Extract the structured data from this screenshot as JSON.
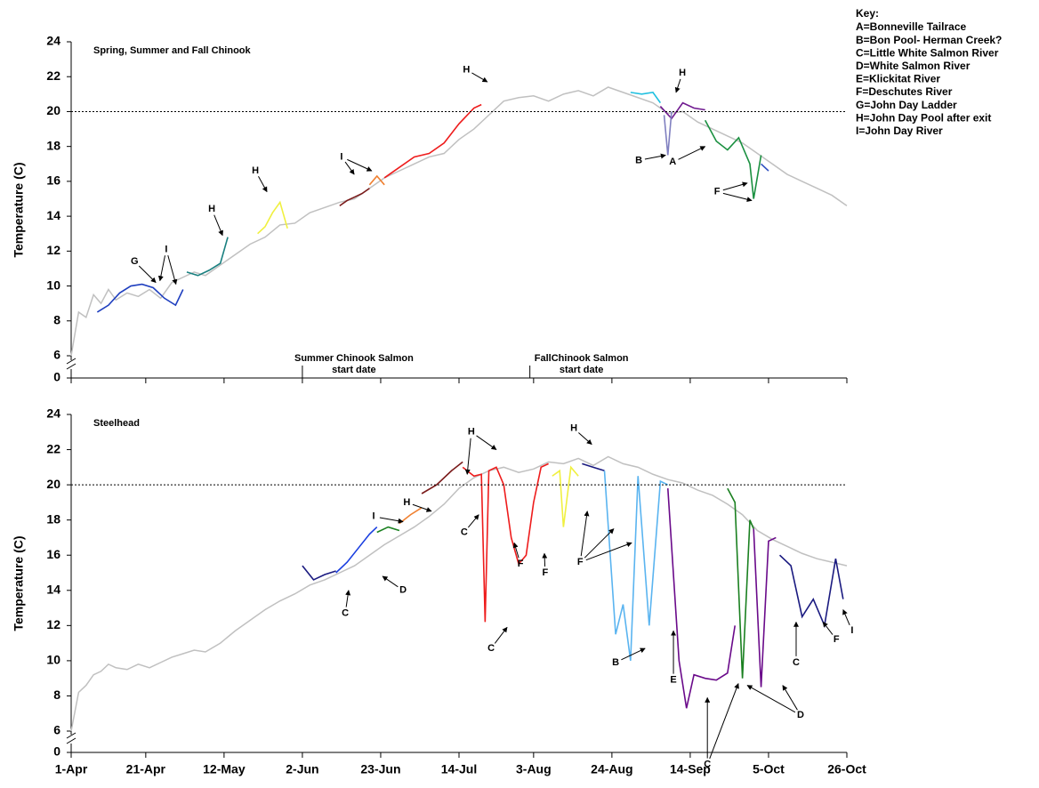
{
  "chart_data": [
    {
      "type": "line",
      "title": "Spring, Summer and Fall Chinook",
      "y_label": "Temperature (C)",
      "xlim": [
        0,
        208
      ],
      "xticks": [
        0,
        20,
        41,
        62,
        83,
        104,
        124,
        145,
        166,
        187,
        208
      ],
      "ylim": [
        6,
        24
      ],
      "yticks": [
        6,
        8,
        10,
        12,
        14,
        16,
        18,
        20,
        22,
        24
      ],
      "y_break_label": 0,
      "hline": 20,
      "markers": [
        {
          "x": 62,
          "label": [
            "Summer Chinook Salmon",
            "start date"
          ]
        },
        {
          "x": 123,
          "label": [
            "FallChinook Salmon",
            "start date"
          ]
        }
      ],
      "series": [
        {
          "color": "#c0c0c0",
          "x": [
            0,
            2,
            4,
            6,
            8,
            10,
            12,
            15,
            18,
            21,
            24,
            27,
            30,
            33,
            36,
            40,
            44,
            48,
            52,
            56,
            60,
            64,
            68,
            72,
            76,
            80,
            84,
            88,
            92,
            96,
            100,
            104,
            108,
            112,
            116,
            120,
            124,
            128,
            132,
            136,
            140,
            144,
            148,
            152,
            156,
            160,
            164,
            168,
            172,
            176,
            180,
            184,
            188,
            192,
            196,
            200,
            204,
            208
          ],
          "values": [
            6,
            8.5,
            8.2,
            9.5,
            9,
            9.8,
            9.2,
            9.6,
            9.4,
            9.8,
            9.3,
            10.2,
            10.5,
            10.8,
            10.6,
            11.2,
            11.8,
            12.4,
            12.8,
            13.5,
            13.6,
            14.2,
            14.5,
            14.8,
            15,
            15.6,
            16.2,
            16.6,
            17,
            17.4,
            17.6,
            18.4,
            19,
            19.8,
            20.6,
            20.8,
            20.9,
            20.6,
            21,
            21.2,
            20.9,
            21.4,
            21.1,
            20.8,
            20.5,
            19.9,
            20,
            19.4,
            19,
            18.6,
            18.2,
            17.6,
            17,
            16.4,
            16,
            15.6,
            15.2,
            14.6
          ]
        },
        {
          "color": "#1f3fbf",
          "x": [
            7,
            10,
            13,
            16,
            19,
            22,
            25,
            28,
            30
          ],
          "values": [
            8.5,
            8.9,
            9.6,
            10,
            10.1,
            9.9,
            9.3,
            8.9,
            9.8
          ]
        },
        {
          "color": "#1a8080",
          "x": [
            31,
            34,
            37,
            40,
            42
          ],
          "values": [
            10.8,
            10.6,
            10.9,
            11.3,
            12.8
          ]
        },
        {
          "color": "#f0f040",
          "x": [
            50,
            52,
            54,
            56,
            58
          ],
          "values": [
            13,
            13.4,
            14.2,
            14.8,
            13.3
          ]
        },
        {
          "color": "#7a1a1a",
          "x": [
            72,
            74,
            76,
            78,
            80
          ],
          "values": [
            14.6,
            14.9,
            15.1,
            15.3,
            15.6
          ]
        },
        {
          "color": "#f08030",
          "x": [
            80,
            82,
            84
          ],
          "values": [
            15.8,
            16.3,
            15.8
          ]
        },
        {
          "color": "#ee1c1c",
          "x": [
            84,
            88,
            92,
            96,
            100,
            104,
            108,
            110
          ],
          "values": [
            16.2,
            16.8,
            17.4,
            17.6,
            18.2,
            19.3,
            20.2,
            20.4
          ]
        },
        {
          "color": "#20c0e0",
          "x": [
            150,
            153,
            156,
            158
          ],
          "values": [
            21.1,
            21,
            21.1,
            20.5
          ]
        },
        {
          "color": "#701a90",
          "x": [
            158,
            161,
            164,
            167,
            170
          ],
          "values": [
            20.3,
            19.6,
            20.5,
            20.2,
            20.1
          ]
        },
        {
          "color": "#8080c0",
          "x": [
            159,
            160,
            161
          ],
          "values": [
            19.8,
            17.5,
            20
          ]
        },
        {
          "color": "#1a9040",
          "x": [
            170,
            173,
            176,
            179,
            182,
            183,
            185
          ],
          "values": [
            19.5,
            18.3,
            17.8,
            18.5,
            17,
            15,
            17.5
          ]
        },
        {
          "color": "#3050c0",
          "x": [
            185,
            187
          ],
          "values": [
            17,
            16.6
          ]
        }
      ],
      "annotations": [
        {
          "text": "H",
          "x": 106,
          "y": 22.4,
          "targets": [
            [
              111.6,
              21.7
            ]
          ]
        },
        {
          "text": "G",
          "x": 17,
          "y": 11.4,
          "targets": [
            [
              22.7,
              10.2
            ]
          ]
        },
        {
          "text": "I",
          "x": 25.5,
          "y": 12.1,
          "targets": [
            [
              23.8,
              10.3
            ],
            [
              28.1,
              10.1
            ]
          ]
        },
        {
          "text": "H",
          "x": 37.7,
          "y": 14.4,
          "targets": [
            [
              40.6,
              12.9
            ]
          ]
        },
        {
          "text": "H",
          "x": 49.4,
          "y": 16.6,
          "targets": [
            [
              52.5,
              15.4
            ]
          ]
        },
        {
          "text": "I",
          "x": 72.5,
          "y": 17.4,
          "targets": [
            [
              75.9,
              16.4
            ],
            [
              80.6,
              16.6
            ]
          ]
        },
        {
          "text": "H",
          "x": 163.9,
          "y": 22.2,
          "targets": [
            [
              162.2,
              21.1
            ]
          ]
        },
        {
          "text": "B",
          "x": 152.2,
          "y": 17.2,
          "targets": [
            [
              159.4,
              17.5
            ]
          ]
        },
        {
          "text": "A",
          "x": 161.3,
          "y": 17.1,
          "targets": [
            [
              170,
              18
            ]
          ]
        },
        {
          "text": "F",
          "x": 173.2,
          "y": 15.4,
          "targets": [
            [
              181.3,
              15.9
            ],
            [
              182.5,
              14.9
            ]
          ]
        }
      ]
    },
    {
      "type": "line",
      "title": "Steelhead",
      "y_label": "Temperature (C)",
      "xlim": [
        0,
        208
      ],
      "xticks": [
        {
          "value": 0,
          "label": "1-Apr"
        },
        {
          "value": 20,
          "label": "21-Apr"
        },
        {
          "value": 41,
          "label": "12-May"
        },
        {
          "value": 62,
          "label": "2-Jun"
        },
        {
          "value": 83,
          "label": "23-Jun"
        },
        {
          "value": 104,
          "label": "14-Jul"
        },
        {
          "value": 124,
          "label": "3-Aug"
        },
        {
          "value": 145,
          "label": "24-Aug"
        },
        {
          "value": 166,
          "label": "14-Sep"
        },
        {
          "value": 187,
          "label": "5-Oct"
        },
        {
          "value": 208,
          "label": "26-Oct"
        }
      ],
      "ylim": [
        6,
        24
      ],
      "yticks": [
        6,
        8,
        10,
        12,
        14,
        16,
        18,
        20,
        22,
        24
      ],
      "y_break_label": 0,
      "hline": 20,
      "series": [
        {
          "color": "#c0c0c0",
          "x": [
            0,
            2,
            4,
            6,
            8,
            10,
            12,
            15,
            18,
            21,
            24,
            27,
            30,
            33,
            36,
            40,
            44,
            48,
            52,
            56,
            60,
            64,
            68,
            72,
            76,
            80,
            84,
            88,
            92,
            96,
            100,
            104,
            108,
            112,
            116,
            120,
            124,
            128,
            132,
            136,
            140,
            144,
            148,
            152,
            156,
            160,
            164,
            168,
            172,
            176,
            180,
            184,
            188,
            192,
            196,
            200,
            204,
            208
          ],
          "values": [
            6,
            8.2,
            8.6,
            9.2,
            9.4,
            9.8,
            9.6,
            9.5,
            9.8,
            9.6,
            9.9,
            10.2,
            10.4,
            10.6,
            10.5,
            11,
            11.7,
            12.3,
            12.9,
            13.4,
            13.8,
            14.3,
            14.6,
            15,
            15.4,
            16,
            16.6,
            17.1,
            17.6,
            18.2,
            18.9,
            19.8,
            20.4,
            20.8,
            21,
            20.7,
            20.9,
            21.3,
            21.2,
            21.5,
            21.1,
            21.6,
            21.2,
            21,
            20.6,
            20.3,
            20.1,
            19.7,
            19.4,
            18.9,
            18.3,
            17.4,
            16.9,
            16.5,
            16.1,
            15.8,
            15.6,
            15.4
          ]
        },
        {
          "color": "#1a1a80",
          "x": [
            62,
            65,
            68,
            71
          ],
          "values": [
            15.4,
            14.6,
            14.9,
            15.1
          ]
        },
        {
          "color": "#1a3fe0",
          "x": [
            71,
            74,
            77,
            80,
            82
          ],
          "values": [
            15,
            15.6,
            16.4,
            17.2,
            17.6
          ]
        },
        {
          "color": "#1a8020",
          "x": [
            82,
            85,
            88
          ],
          "values": [
            17.3,
            17.6,
            17.4
          ]
        },
        {
          "color": "#f08030",
          "x": [
            88,
            91,
            94
          ],
          "values": [
            17.8,
            18.3,
            18.7
          ]
        },
        {
          "color": "#7a1a1a",
          "x": [
            94,
            98,
            102,
            105
          ],
          "values": [
            19.5,
            20,
            20.8,
            21.3
          ]
        },
        {
          "color": "#ee1c1c",
          "x": [
            105,
            108,
            110,
            111,
            112,
            114,
            116,
            118,
            120,
            122,
            124,
            126,
            128
          ],
          "values": [
            21,
            20.5,
            20.6,
            12.2,
            20.8,
            21,
            20,
            17,
            15.5,
            16,
            19,
            21,
            21.2
          ]
        },
        {
          "color": "#f0f040",
          "x": [
            129,
            131,
            132,
            134,
            136
          ],
          "values": [
            20.5,
            20.8,
            17.6,
            21,
            20.5
          ]
        },
        {
          "color": "#1a1a80",
          "x": [
            137,
            140,
            143
          ],
          "values": [
            21.2,
            21,
            20.8
          ]
        },
        {
          "color": "#5ab4f0",
          "x": [
            143,
            146,
            148,
            150,
            152,
            155,
            158,
            160
          ],
          "values": [
            20.8,
            11.5,
            13.2,
            10,
            20.5,
            12,
            20.2,
            20
          ]
        },
        {
          "color": "#6a0a8a",
          "x": [
            160,
            163,
            165,
            167,
            170,
            173,
            176,
            178
          ],
          "values": [
            19.8,
            10,
            7.3,
            9.2,
            9,
            8.9,
            9.3,
            12
          ]
        },
        {
          "color": "#1a8020",
          "x": [
            176,
            178,
            180,
            182,
            183
          ],
          "values": [
            19.8,
            19,
            9,
            18,
            17.5
          ]
        },
        {
          "color": "#6a0a8a",
          "x": [
            183,
            185,
            187,
            189
          ],
          "values": [
            17.5,
            8.5,
            16.8,
            17
          ]
        },
        {
          "color": "#1a1a80",
          "x": [
            190,
            193,
            196,
            199,
            202,
            205,
            207
          ],
          "values": [
            16,
            15.4,
            12.5,
            13.5,
            12,
            15.8,
            13.5
          ]
        }
      ],
      "annotations": [
        {
          "text": "H",
          "x": 107.3,
          "y": 23,
          "targets": [
            [
              114,
              22
            ],
            [
              106.2,
              20.6
            ]
          ]
        },
        {
          "text": "H",
          "x": 134.8,
          "y": 23.2,
          "targets": [
            [
              139.6,
              22.3
            ]
          ]
        },
        {
          "text": "I",
          "x": 81.1,
          "y": 18.2,
          "targets": [
            [
              89,
              17.9
            ]
          ]
        },
        {
          "text": "H",
          "x": 90,
          "y": 19,
          "targets": [
            [
              96.6,
              18.5
            ]
          ]
        },
        {
          "text": "C",
          "x": 105.4,
          "y": 17.3,
          "targets": [
            [
              109.3,
              18.3
            ]
          ]
        },
        {
          "text": "C",
          "x": 73.5,
          "y": 12.7,
          "targets": [
            [
              74.4,
              14
            ]
          ]
        },
        {
          "text": "D",
          "x": 89,
          "y": 14,
          "targets": [
            [
              83.5,
              14.8
            ]
          ]
        },
        {
          "text": "F",
          "x": 120.5,
          "y": 15.5,
          "targets": [
            [
              118.8,
              16.7
            ]
          ]
        },
        {
          "text": "F",
          "x": 127.1,
          "y": 15,
          "targets": [
            [
              126.9,
              16.1
            ]
          ]
        },
        {
          "text": "C",
          "x": 112.6,
          "y": 10.7,
          "targets": [
            [
              116.9,
              11.9
            ]
          ]
        },
        {
          "text": "F",
          "x": 136.5,
          "y": 15.6,
          "targets": [
            [
              145.5,
              17.5
            ],
            [
              150.3,
              16.7
            ],
            [
              138.4,
              18.5
            ]
          ]
        },
        {
          "text": "B",
          "x": 146,
          "y": 9.9,
          "targets": [
            [
              153.9,
              10.7
            ]
          ]
        },
        {
          "text": "E",
          "x": 161.5,
          "y": 8.9,
          "targets": [
            [
              161.5,
              11.7
            ]
          ]
        },
        {
          "text": "C",
          "x": 170.6,
          "y": 4.1,
          "targets": [
            [
              170.6,
              7.9
            ],
            [
              178.9,
              8.7
            ]
          ]
        },
        {
          "text": "D",
          "x": 195.6,
          "y": 6.9,
          "targets": [
            [
              181.3,
              8.6
            ],
            [
              190.8,
              8.6
            ]
          ]
        },
        {
          "text": "C",
          "x": 194.4,
          "y": 9.9,
          "targets": [
            [
              194.4,
              12.2
            ]
          ]
        },
        {
          "text": "F",
          "x": 205.2,
          "y": 11.2,
          "targets": [
            [
              201.6,
              12.2
            ]
          ]
        },
        {
          "text": "I",
          "x": 209.4,
          "y": 11.7,
          "targets": [
            [
              207,
              12.9
            ]
          ]
        }
      ]
    }
  ],
  "key": {
    "title": "Key:",
    "items": [
      "A=Bonneville Tailrace",
      "B=Bon Pool- Herman Creek?",
      "C=Little White Salmon River",
      "D=White Salmon River",
      "E=Klickitat River",
      "F=Deschutes River",
      "G=John Day Ladder",
      "H=John Day Pool after exit",
      "I=John Day River"
    ]
  }
}
